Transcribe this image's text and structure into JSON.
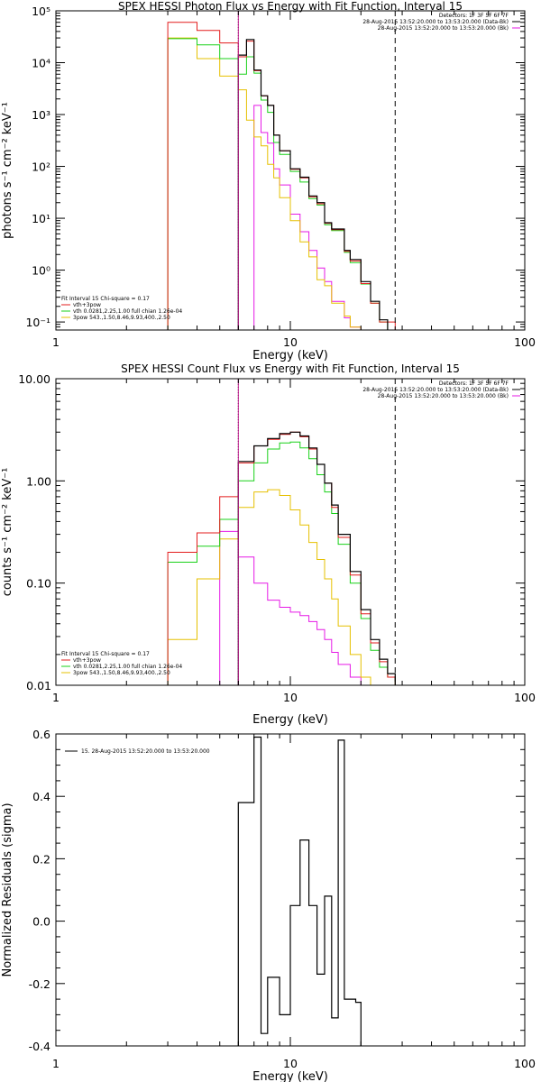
{
  "chart_data": [
    {
      "type": "line",
      "title": "SPEX HESSI Photon Flux vs Energy with Fit Function, Interval 15",
      "xlabel": "Energy (keV)",
      "ylabel": "photons s⁻¹ cm⁻² keV⁻¹",
      "xscale": "log",
      "yscale": "log",
      "xlim": [
        1,
        100
      ],
      "ylim": [
        0.07,
        100000
      ],
      "xtick_labels": [
        "1",
        "10",
        "100"
      ],
      "ytick_labels": [
        "10⁻¹",
        "10⁰",
        "10¹",
        "10²",
        "10³",
        "10⁴",
        "10⁵"
      ],
      "grid": false,
      "edges": [
        3,
        4,
        5,
        6,
        6.5,
        7,
        7.5,
        8,
        8.5,
        9,
        10,
        11,
        12,
        13,
        14,
        15,
        17,
        18,
        20,
        22,
        24,
        26,
        28
      ],
      "series": [
        {
          "name": "Data",
          "color": "#000000",
          "values": [
            null,
            null,
            null,
            14000,
            28000,
            7200,
            2300,
            1500,
            400,
            200,
            90,
            62,
            27,
            20,
            8.2,
            6.2,
            2.4,
            1.6,
            0.6,
            0.25,
            0.11
          ]
        },
        {
          "name": "vth+3pow",
          "color": "#e31c1c",
          "values": [
            60000,
            42000,
            24000,
            13000,
            26000,
            7000,
            2300,
            1500,
            400,
            200,
            88,
            60,
            26,
            19,
            8,
            6,
            2.3,
            1.5,
            0.55,
            0.23,
            0.1,
            0.1
          ]
        },
        {
          "name": "vth 0.0281,2.25,1.00  full chian 1.26e-04",
          "color": "#19d119",
          "values": [
            29000,
            22000,
            12000,
            6000,
            13000,
            6300,
            1900,
            1100,
            290,
            170,
            80,
            50,
            24,
            18,
            7.5,
            5.8,
            2.2,
            1.4,
            0.54,
            0.23,
            0.1
          ]
        },
        {
          "name": "3pow 543.,1.50,8.46,9.93,400.,2.50",
          "color": "#e6c000",
          "values": [
            30000,
            12000,
            5500,
            3000,
            780,
            370,
            250,
            110,
            60,
            25,
            9,
            3.5,
            1.8,
            0.65,
            0.5,
            0.23,
            0.13,
            0.08
          ]
        },
        {
          "name": "",
          "color": "#e619e6",
          "values": [
            null,
            null,
            null,
            null,
            null,
            1500,
            450,
            280,
            90,
            44,
            12,
            5.5,
            2.4,
            1.1,
            0.6,
            0.25,
            0.12,
            0.08
          ]
        }
      ],
      "vlines": [
        {
          "x": 6,
          "color": "#000000",
          "style": "dotted"
        },
        {
          "x": 6,
          "color": "#c0208f",
          "style": "solid"
        },
        {
          "x": 28,
          "color": "#000000",
          "style": "dashed"
        }
      ],
      "legend_location": "bottom-left",
      "legend_title": "Fit Interval 15   Chi-square = 0.17",
      "annotation_lines": [
        {
          "text": "Detectors: 1F 3F 5F 6F 7F",
          "color": ""
        },
        {
          "text": "28-Aug-2015 13:52:20.000 to 13:53:20.000 (Data-Bk)",
          "color": "#000000"
        },
        {
          "text": "28-Aug-2015 13:52:20.000 to 13:53:20.000 (Bk)",
          "color": "#e619e6"
        }
      ]
    },
    {
      "type": "line",
      "title": "SPEX HESSI Count Flux vs Energy with Fit Function, Interval 15",
      "xlabel": "Energy (keV)",
      "ylabel": "counts s⁻¹ cm⁻² keV⁻¹",
      "xscale": "log",
      "yscale": "log",
      "xlim": [
        1,
        100
      ],
      "ylim": [
        0.01,
        10
      ],
      "xtick_labels": [
        "1",
        "10",
        "100"
      ],
      "ytick_labels": [
        "0.01",
        "0.10",
        "1.00",
        "10.00"
      ],
      "grid": false,
      "edges": [
        3,
        4,
        5,
        6,
        7,
        8,
        9,
        10,
        11,
        12,
        13,
        14,
        15,
        16,
        18,
        20,
        22,
        24,
        26,
        28
      ],
      "series": [
        {
          "name": "Data",
          "color": "#000000",
          "values": [
            null,
            null,
            null,
            1.55,
            2.2,
            2.6,
            2.9,
            3.0,
            2.75,
            2.1,
            1.45,
            0.95,
            0.58,
            0.3,
            0.13,
            0.055,
            0.028,
            0.018,
            0.013
          ]
        },
        {
          "name": "vth+3pow",
          "color": "#e31c1c",
          "values": [
            0.2,
            0.31,
            0.7,
            1.5,
            2.2,
            2.55,
            2.85,
            3.0,
            2.7,
            2.05,
            1.45,
            0.95,
            0.55,
            0.28,
            0.12,
            0.05,
            0.026,
            0.017,
            0.012
          ]
        },
        {
          "name": "vth 0.0281,2.25,1.00  full chian 1.26e-04",
          "color": "#19d119",
          "values": [
            0.16,
            0.23,
            0.42,
            1.0,
            1.5,
            2.05,
            2.35,
            2.4,
            2.1,
            1.65,
            1.15,
            0.78,
            0.48,
            0.24,
            0.1,
            0.045,
            0.022,
            0.015,
            0.012
          ]
        },
        {
          "name": "3pow 543.,1.50,8.46,9.93,400.,2.50",
          "color": "#e6c000",
          "values": [
            0.028,
            0.11,
            0.27,
            0.55,
            0.78,
            0.82,
            0.72,
            0.52,
            0.37,
            0.25,
            0.17,
            0.11,
            0.07,
            0.038,
            0.02,
            0.012,
            0.009
          ]
        },
        {
          "name": "",
          "color": "#e619e6",
          "values": [
            null,
            null,
            0.32,
            0.18,
            0.1,
            0.068,
            0.058,
            0.052,
            0.048,
            0.042,
            0.035,
            0.028,
            0.021,
            0.016,
            0.012,
            0.009
          ]
        }
      ],
      "vlines": [
        {
          "x": 6,
          "color": "#000000",
          "style": "dotted"
        },
        {
          "x": 6,
          "color": "#c0208f",
          "style": "solid"
        },
        {
          "x": 28,
          "color": "#000000",
          "style": "dashed"
        }
      ],
      "legend_location": "bottom-left",
      "legend_title": "Fit Interval 15   Chi-square = 0.17",
      "annotation_lines": [
        {
          "text": "Detectors: 1F 3F 5F 6F 7F",
          "color": ""
        },
        {
          "text": "28-Aug-2015 13:52:20.000 to 13:53:20.000 (Data-Bk)",
          "color": "#000000"
        },
        {
          "text": "28-Aug-2015 13:52:20.000 to 13:53:20.000 (Bk)",
          "color": "#e619e6"
        }
      ]
    },
    {
      "type": "line",
      "title": "",
      "xlabel": "Energy (keV)",
      "ylabel": "Normalized Residuals (sigma)",
      "xscale": "log",
      "yscale": "linear",
      "xlim": [
        1,
        100
      ],
      "ylim": [
        -0.4,
        0.6
      ],
      "xtick_labels": [
        "1",
        "10",
        "100"
      ],
      "ytick_labels": [
        "-0.4",
        "-0.2",
        "0.0",
        "0.2",
        "0.4",
        "0.6"
      ],
      "grid": false,
      "edges": [
        6,
        7,
        7.5,
        8,
        9,
        10,
        11,
        12,
        13,
        14,
        15,
        16,
        17,
        19,
        20,
        22,
        24,
        26,
        28
      ],
      "series": [
        {
          "name": "15. 28-Aug-2015 13:52:20.000 to 13:53:20.000",
          "color": "#000000",
          "values": [
            0.38,
            0.59,
            -0.36,
            -0.18,
            -0.3,
            0.05,
            0.26,
            0.05,
            -0.17,
            0.08,
            -0.31,
            0.58,
            -0.25,
            -0.26
          ]
        }
      ],
      "vlines": [],
      "legend_location": "top-left"
    }
  ]
}
